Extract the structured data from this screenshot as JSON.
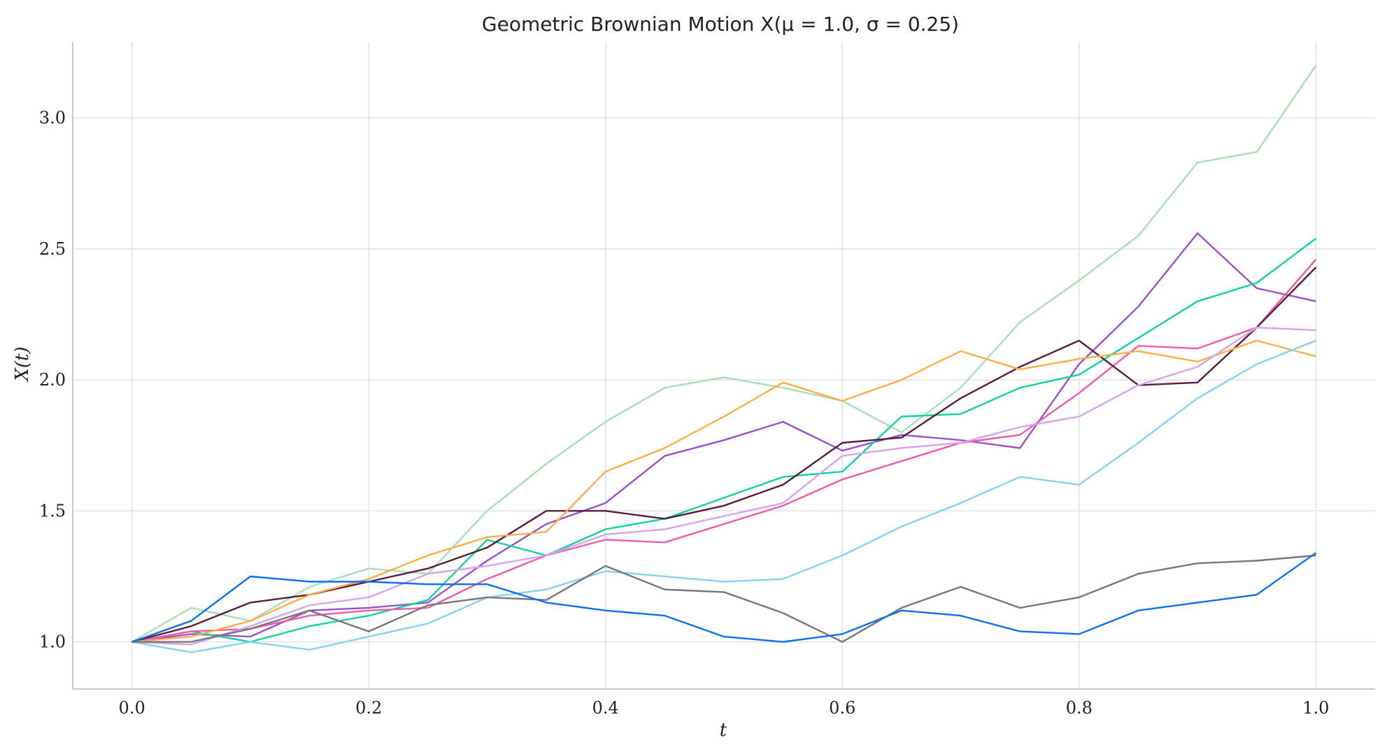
{
  "chart_data": {
    "type": "line",
    "title": "Geometric Brownian Motion X(μ = 1.0, σ = 0.25)",
    "xlabel": "t",
    "ylabel": "X(t)",
    "xlim": [
      -0.05,
      1.05
    ],
    "ylim": [
      0.82,
      3.29
    ],
    "xticks": [
      0.0,
      0.2,
      0.4,
      0.6,
      0.8,
      1.0
    ],
    "xtick_labels": [
      "0.0",
      "0.2",
      "0.4",
      "0.6",
      "0.8",
      "1.0"
    ],
    "yticks": [
      1.0,
      1.5,
      2.0,
      2.5,
      3.0
    ],
    "ytick_labels": [
      "1.0",
      "1.5",
      "2.0",
      "2.5",
      "3.0"
    ],
    "grid": true,
    "legend": "none",
    "series": [
      {
        "color": "#a8dfb4",
        "x": [
          0,
          0.05,
          0.1,
          0.15,
          0.2,
          0.25,
          0.3,
          0.35,
          0.4,
          0.45,
          0.5,
          0.55,
          0.6,
          0.65,
          0.7,
          0.75,
          0.8,
          0.85,
          0.9,
          0.95,
          1.0
        ],
        "y": [
          1.0,
          1.13,
          1.08,
          1.21,
          1.28,
          1.26,
          1.5,
          1.68,
          1.84,
          1.97,
          2.01,
          1.97,
          1.92,
          1.8,
          1.97,
          2.22,
          2.38,
          2.55,
          2.83,
          2.87,
          3.2
        ]
      },
      {
        "color": "#9b4fcf",
        "x": [
          0,
          0.05,
          0.1,
          0.15,
          0.2,
          0.25,
          0.3,
          0.35,
          0.4,
          0.45,
          0.5,
          0.55,
          0.6,
          0.65,
          0.7,
          0.75,
          0.8,
          0.85,
          0.9,
          0.95,
          1.0
        ],
        "y": [
          1.0,
          1.03,
          1.02,
          1.12,
          1.13,
          1.15,
          1.31,
          1.45,
          1.53,
          1.71,
          1.77,
          1.84,
          1.73,
          1.79,
          1.77,
          1.74,
          2.06,
          2.28,
          2.56,
          2.35,
          2.3
        ]
      },
      {
        "color": "#10d39a",
        "x": [
          0,
          0.05,
          0.1,
          0.15,
          0.2,
          0.25,
          0.3,
          0.35,
          0.4,
          0.45,
          0.5,
          0.55,
          0.6,
          0.65,
          0.7,
          0.75,
          0.8,
          0.85,
          0.9,
          0.95,
          1.0
        ],
        "y": [
          1.0,
          1.04,
          1.0,
          1.06,
          1.1,
          1.16,
          1.39,
          1.33,
          1.43,
          1.47,
          1.55,
          1.63,
          1.65,
          1.86,
          1.87,
          1.97,
          2.02,
          2.16,
          2.3,
          2.37,
          2.54
        ]
      },
      {
        "color": "#ef5aa8",
        "x": [
          0,
          0.05,
          0.1,
          0.15,
          0.2,
          0.25,
          0.3,
          0.35,
          0.4,
          0.45,
          0.5,
          0.55,
          0.6,
          0.65,
          0.7,
          0.75,
          0.8,
          0.85,
          0.9,
          0.95,
          1.0
        ],
        "y": [
          1.0,
          1.04,
          1.05,
          1.1,
          1.12,
          1.13,
          1.24,
          1.33,
          1.39,
          1.38,
          1.45,
          1.52,
          1.62,
          1.69,
          1.76,
          1.79,
          1.95,
          2.13,
          2.12,
          2.2,
          2.46
        ]
      },
      {
        "color": "#5c1a3e",
        "x": [
          0,
          0.05,
          0.1,
          0.15,
          0.2,
          0.25,
          0.3,
          0.35,
          0.4,
          0.45,
          0.5,
          0.55,
          0.6,
          0.65,
          0.7,
          0.75,
          0.8,
          0.85,
          0.9,
          0.95,
          1.0
        ],
        "y": [
          1.0,
          1.06,
          1.15,
          1.18,
          1.23,
          1.28,
          1.36,
          1.5,
          1.5,
          1.47,
          1.52,
          1.6,
          1.76,
          1.78,
          1.93,
          2.05,
          2.15,
          1.98,
          1.99,
          2.2,
          2.43
        ]
      },
      {
        "color": "#ffad45",
        "x": [
          0,
          0.05,
          0.1,
          0.15,
          0.2,
          0.25,
          0.3,
          0.35,
          0.4,
          0.45,
          0.5,
          0.55,
          0.6,
          0.65,
          0.7,
          0.75,
          0.8,
          0.85,
          0.9,
          0.95,
          1.0
        ],
        "y": [
          1.0,
          1.02,
          1.08,
          1.18,
          1.24,
          1.33,
          1.4,
          1.42,
          1.65,
          1.74,
          1.86,
          1.99,
          1.92,
          2.0,
          2.11,
          2.04,
          2.08,
          2.11,
          2.07,
          2.15,
          2.09
        ]
      },
      {
        "color": "#d7a2f2",
        "x": [
          0,
          0.05,
          0.1,
          0.15,
          0.2,
          0.25,
          0.3,
          0.35,
          0.4,
          0.45,
          0.5,
          0.55,
          0.6,
          0.65,
          0.7,
          0.75,
          0.8,
          0.85,
          0.9,
          0.95,
          1.0
        ],
        "y": [
          1.0,
          0.99,
          1.06,
          1.14,
          1.17,
          1.26,
          1.29,
          1.33,
          1.41,
          1.43,
          1.48,
          1.53,
          1.71,
          1.74,
          1.76,
          1.82,
          1.86,
          1.98,
          2.05,
          2.2,
          2.19
        ]
      },
      {
        "color": "#86d1f5",
        "x": [
          0,
          0.05,
          0.1,
          0.15,
          0.2,
          0.25,
          0.3,
          0.35,
          0.4,
          0.45,
          0.5,
          0.55,
          0.6,
          0.65,
          0.7,
          0.75,
          0.8,
          0.85,
          0.9,
          0.95,
          1.0
        ],
        "y": [
          1.0,
          0.96,
          1.0,
          0.97,
          1.02,
          1.07,
          1.17,
          1.2,
          1.27,
          1.25,
          1.23,
          1.24,
          1.33,
          1.44,
          1.53,
          1.63,
          1.6,
          1.76,
          1.93,
          2.06,
          2.15
        ]
      },
      {
        "color": "#777777",
        "x": [
          0,
          0.05,
          0.1,
          0.15,
          0.2,
          0.25,
          0.3,
          0.35,
          0.4,
          0.45,
          0.5,
          0.55,
          0.6,
          0.65,
          0.7,
          0.75,
          0.8,
          0.85,
          0.9,
          0.95,
          1.0
        ],
        "y": [
          1.0,
          1.0,
          1.05,
          1.12,
          1.04,
          1.14,
          1.17,
          1.16,
          1.29,
          1.2,
          1.19,
          1.11,
          1.0,
          1.13,
          1.21,
          1.13,
          1.17,
          1.26,
          1.3,
          1.31,
          1.33
        ]
      },
      {
        "color": "#0c6ff0",
        "x": [
          0,
          0.05,
          0.1,
          0.15,
          0.2,
          0.25,
          0.3,
          0.35,
          0.4,
          0.45,
          0.5,
          0.55,
          0.6,
          0.65,
          0.7,
          0.75,
          0.8,
          0.85,
          0.9,
          0.95,
          1.0
        ],
        "y": [
          1.0,
          1.08,
          1.25,
          1.23,
          1.23,
          1.22,
          1.22,
          1.15,
          1.12,
          1.1,
          1.02,
          1.0,
          1.03,
          1.12,
          1.1,
          1.04,
          1.03,
          1.12,
          1.15,
          1.18,
          1.34
        ]
      }
    ]
  }
}
